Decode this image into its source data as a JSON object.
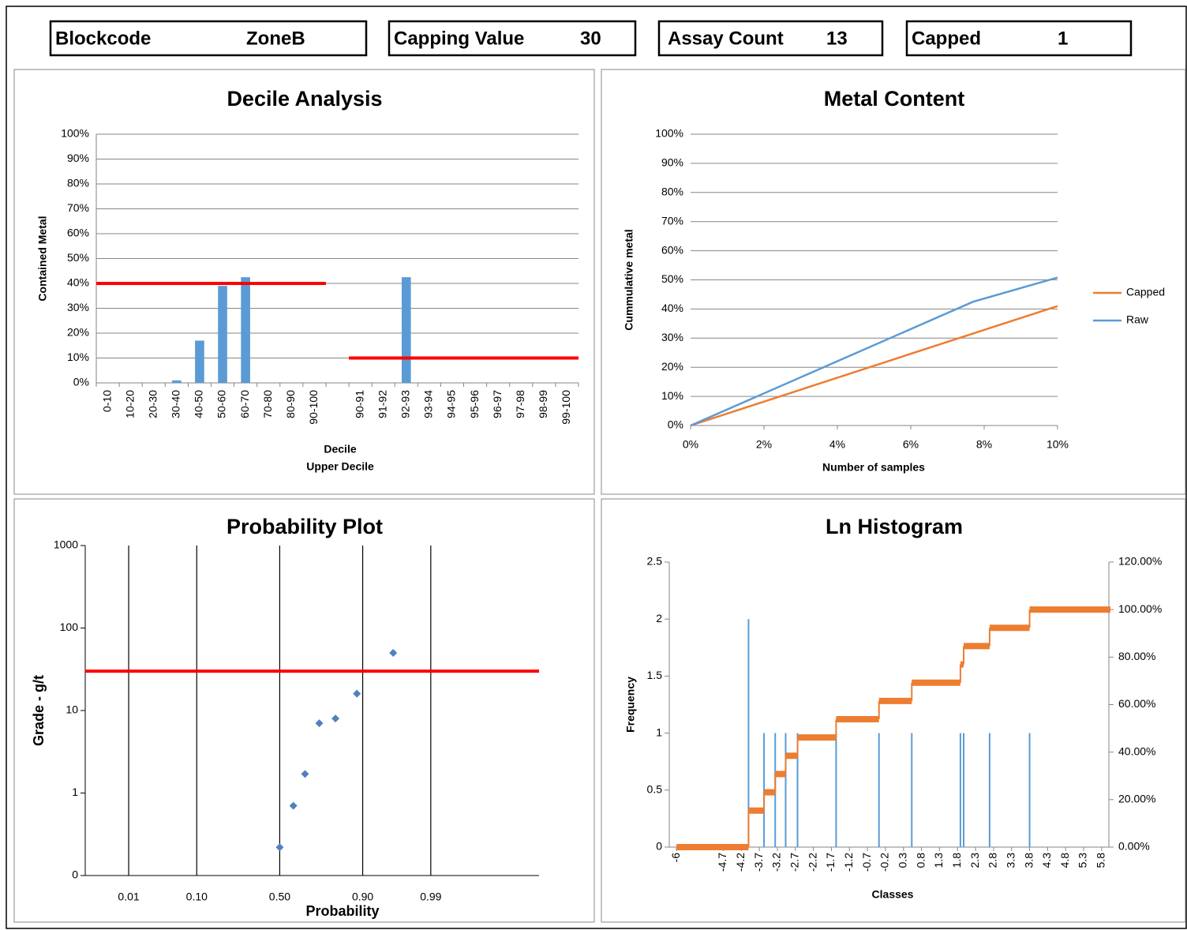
{
  "header": [
    {
      "label": "Blockcode",
      "value": "ZoneB"
    },
    {
      "label": "Capping Value",
      "value": 30
    },
    {
      "label": "Assay Count",
      "value": 13
    },
    {
      "label": "Capped",
      "value": 1
    }
  ],
  "chart_data": [
    {
      "type": "bar",
      "title": "Decile Analysis",
      "ylabel": "Contained Metal",
      "xlabel": "Decile",
      "xlabel2": "Upper Decile",
      "categories": [
        "0-10",
        "10-20",
        "20-30",
        "30-40",
        "40-50",
        "50-60",
        "60-70",
        "70-80",
        "80-90",
        "90-100",
        null,
        "90-91",
        "91-92",
        "92-93",
        "93-94",
        "94-95",
        "95-96",
        "96-97",
        "97-98",
        "98-99",
        "99-100"
      ],
      "values": [
        0,
        0,
        0,
        1,
        17,
        39,
        42.5,
        0,
        0,
        0,
        null,
        0,
        0,
        42.5,
        0,
        0,
        0,
        0,
        0,
        0,
        0
      ],
      "color": "#5b9bd5",
      "reference_lines": [
        40,
        10
      ],
      "reference_color": "#ff0000",
      "ylim": [
        0,
        100
      ],
      "yticks": [
        {
          "value": 0,
          "label": "0%"
        },
        {
          "value": 10,
          "label": "10%"
        },
        {
          "value": 20,
          "label": "20%"
        },
        {
          "value": 30,
          "label": "30%"
        },
        {
          "value": 40,
          "label": "40%"
        },
        {
          "value": 50,
          "label": "50%"
        },
        {
          "value": 60,
          "label": "60%"
        },
        {
          "value": 70,
          "label": "70%"
        },
        {
          "value": 80,
          "label": "80%"
        },
        {
          "value": 90,
          "label": "90%"
        },
        {
          "value": 100,
          "label": "100%"
        }
      ],
      "grid": true
    },
    {
      "type": "line",
      "title": "Metal Content",
      "xlabel": "Number of samples",
      "ylabel": "Cummulative metal",
      "x": [
        0,
        7.7,
        10
      ],
      "series": [
        {
          "name": "Capped",
          "color": "#ed7d31",
          "values": [
            0,
            31.6,
            41
          ]
        },
        {
          "name": "Raw",
          "color": "#5b9bd5",
          "values": [
            0,
            42.5,
            50.8
          ]
        }
      ],
      "xlim": [
        0,
        10
      ],
      "xticks": [
        {
          "value": 0,
          "label": "0%"
        },
        {
          "value": 2,
          "label": "2%"
        },
        {
          "value": 4,
          "label": "4%"
        },
        {
          "value": 6,
          "label": "6%"
        },
        {
          "value": 8,
          "label": "8%"
        },
        {
          "value": 10,
          "label": "10%"
        }
      ],
      "ylim": [
        0,
        100
      ],
      "yticks": [
        {
          "value": 0,
          "label": "0%"
        },
        {
          "value": 10,
          "label": "10%"
        },
        {
          "value": 20,
          "label": "20%"
        },
        {
          "value": 30,
          "label": "30%"
        },
        {
          "value": 40,
          "label": "40%"
        },
        {
          "value": 50,
          "label": "50%"
        },
        {
          "value": 60,
          "label": "60%"
        },
        {
          "value": 70,
          "label": "70%"
        },
        {
          "value": 80,
          "label": "80%"
        },
        {
          "value": 90,
          "label": "90%"
        },
        {
          "value": 100,
          "label": "100%"
        }
      ],
      "grid": true,
      "legend": "right"
    },
    {
      "type": "scatter",
      "title": "Probability Plot",
      "xlabel": "Probability",
      "ylabel": "Grade - g/t",
      "x": [
        0,
        0.21,
        0.39,
        0.61,
        0.86,
        1.19,
        1.75
      ],
      "values": [
        0.22,
        0.7,
        1.7,
        7,
        8,
        16,
        50
      ],
      "color": "#4f81bd",
      "log_y": true,
      "ylim": [
        0.1,
        1000
      ],
      "yticks": [
        {
          "value": 0.1,
          "label": "0"
        },
        1,
        10,
        100,
        1000
      ],
      "xlim": [
        -3,
        4
      ],
      "xticks": [
        {
          "value": -2.33,
          "label": "0.01"
        },
        {
          "value": -1.28,
          "label": "0.10"
        },
        {
          "value": 0,
          "label": "0.50"
        },
        {
          "value": 1.28,
          "label": "0.90"
        },
        {
          "value": 2.33,
          "label": "0.99"
        }
      ],
      "grid": "x",
      "reference_lines": [
        30
      ],
      "reference_color": "#ff0000"
    },
    {
      "type": "histogram",
      "title": "Ln Histogram",
      "xlabel": "Classes",
      "ylabel": "Frequency",
      "series": [
        {
          "color": "#5b9bd5",
          "x": [
            -4.0,
            -3.57,
            -3.26,
            -2.97,
            -2.64,
            -1.57,
            -0.38,
            0.53,
            1.88,
            1.97,
            2.69,
            3.8
          ],
          "values": [
            2,
            1,
            1,
            1,
            1,
            1,
            1,
            1,
            1,
            1,
            1,
            1
          ]
        },
        {
          "axis": "y2",
          "color": "#ed7d31",
          "x": [
            -6,
            -4.0,
            -3.57,
            -3.26,
            -2.97,
            -2.64,
            -1.57,
            -0.38,
            0.53,
            1.88,
            1.97,
            2.69,
            3.8,
            6
          ],
          "values": [
            0,
            15.38,
            23.08,
            30.77,
            38.46,
            46.15,
            53.85,
            61.54,
            69.23,
            76.92,
            84.62,
            92.31,
            100,
            100
          ]
        }
      ],
      "xlim": [
        -6.2,
        6
      ],
      "xticks": [
        -6,
        -4.7,
        -4.2,
        -3.7,
        -3.2,
        -2.7,
        -2.2,
        -1.7,
        -1.2,
        -0.7,
        -0.2,
        0.3,
        0.8,
        1.3,
        1.8,
        2.3,
        2.8,
        3.3,
        3.8,
        4.3,
        4.8,
        5.3,
        5.8
      ],
      "ylim": [
        0,
        2.5
      ],
      "yticks": [
        0,
        0.5,
        1,
        1.5,
        2,
        2.5
      ],
      "y2lim": [
        0,
        120
      ],
      "y2ticks": [
        {
          "value": 0,
          "label": "0.00%"
        },
        {
          "value": 20,
          "label": "20.00%"
        },
        {
          "value": 40,
          "label": "40.00%"
        },
        {
          "value": 60,
          "label": "60.00%"
        },
        {
          "value": 80,
          "label": "80.00%"
        },
        {
          "value": 100,
          "label": "100.00%"
        },
        {
          "value": 120,
          "label": "120.00%"
        }
      ]
    }
  ]
}
